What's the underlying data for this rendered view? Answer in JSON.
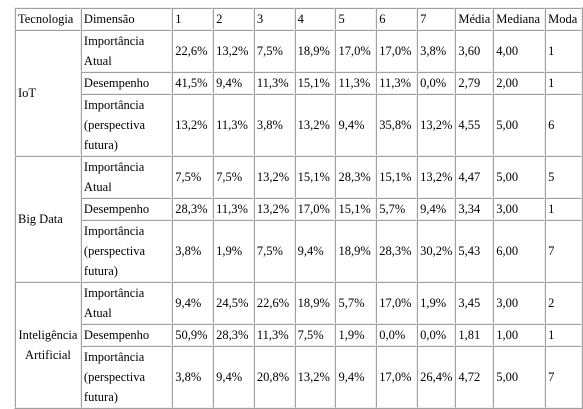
{
  "table": {
    "headers": [
      "Tecnologia",
      "Dimensão",
      "1",
      "2",
      "3",
      "4",
      "5",
      "6",
      "7",
      "Média",
      "Mediana",
      "Moda"
    ],
    "groups": [
      {
        "technology": "IoT",
        "rows": [
          {
            "dimension": "Importância Atual",
            "values": [
              "22,6%",
              "13,2%",
              "7,5%",
              "18,9%",
              "17,0%",
              "17,0%",
              "3,8%",
              "3,60",
              "4,00",
              "1"
            ]
          },
          {
            "dimension": "Desempenho",
            "values": [
              "41,5%",
              "9,4%",
              "11,3%",
              "15,1%",
              "11,3%",
              "11,3%",
              "0,0%",
              "2,79",
              "2,00",
              "1"
            ]
          },
          {
            "dimension": "Importância (perspectiva futura)",
            "values": [
              "13,2%",
              "11,3%",
              "3,8%",
              "13,2%",
              "9,4%",
              "35,8%",
              "13,2%",
              "4,55",
              "5,00",
              "6"
            ]
          }
        ]
      },
      {
        "technology": "Big Data",
        "rows": [
          {
            "dimension": "Importância Atual",
            "values": [
              "7,5%",
              "7,5%",
              "13,2%",
              "15,1%",
              "28,3%",
              "15,1%",
              "13,2%",
              "4,47",
              "5,00",
              "5"
            ]
          },
          {
            "dimension": "Desempenho",
            "values": [
              "28,3%",
              "11,3%",
              "13,2%",
              "17,0%",
              "15,1%",
              "5,7%",
              "9,4%",
              "3,34",
              "3,00",
              "1"
            ]
          },
          {
            "dimension": "Importância (perspectiva futura)",
            "values": [
              "3,8%",
              "1,9%",
              "7,5%",
              "9,4%",
              "18,9%",
              "28,3%",
              "30,2%",
              "5,43",
              "6,00",
              "7"
            ]
          }
        ]
      },
      {
        "technology": "Inteligência Artificial",
        "rows": [
          {
            "dimension": "Importância Atual",
            "values": [
              "9,4%",
              "24,5%",
              "22,6%",
              "18,9%",
              "5,7%",
              "17,0%",
              "1,9%",
              "3,45",
              "3,00",
              "2"
            ]
          },
          {
            "dimension": "Desempenho",
            "values": [
              "50,9%",
              "28,3%",
              "11,3%",
              "7,5%",
              "1,9%",
              "0,0%",
              "0,0%",
              "1,81",
              "1,00",
              "1"
            ]
          },
          {
            "dimension": "Importância (perspectiva futura)",
            "values": [
              "3,8%",
              "9,4%",
              "20,8%",
              "13,2%",
              "9,4%",
              "17,0%",
              "26,4%",
              "4,72",
              "5,00",
              "7"
            ]
          }
        ]
      }
    ]
  }
}
